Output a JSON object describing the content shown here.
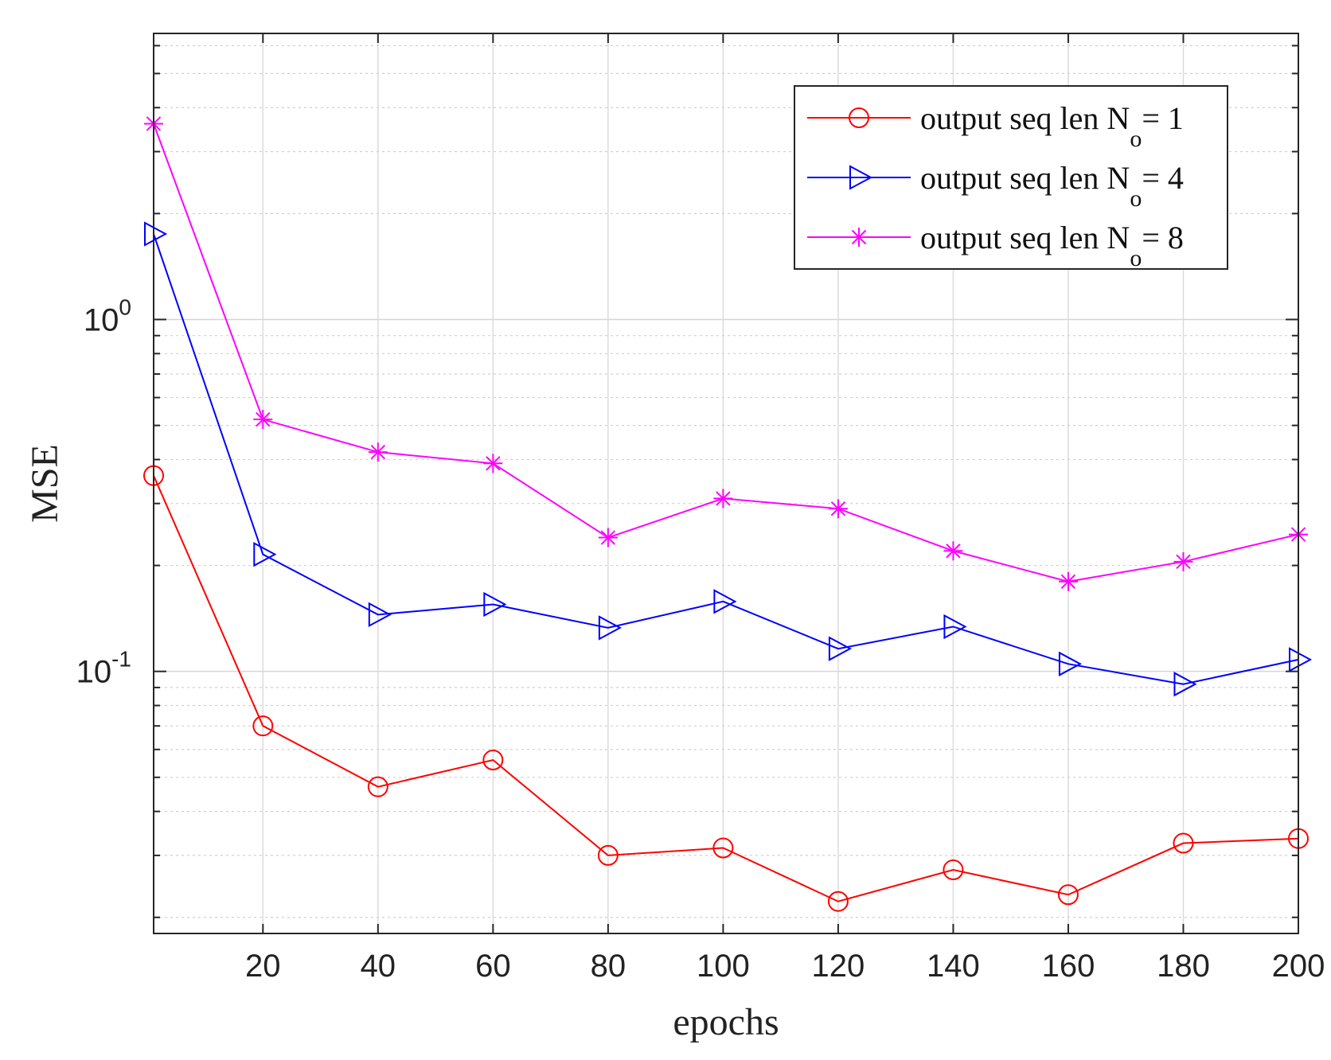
{
  "chart_data": {
    "type": "line",
    "title": "",
    "xlabel": "epochs",
    "ylabel": "MSE",
    "xlim": [
      1,
      200
    ],
    "ylim": [
      0.018,
      6.5
    ],
    "yscale": "log",
    "grid": true,
    "legend_position": "top-right",
    "x": [
      1,
      20,
      40,
      60,
      80,
      100,
      120,
      140,
      160,
      180,
      200
    ],
    "x_ticks": [
      20,
      40,
      60,
      80,
      100,
      120,
      140,
      160,
      180,
      200
    ],
    "x_tick_labels": [
      "20",
      "40",
      "60",
      "80",
      "100",
      "120",
      "140",
      "160",
      "180",
      "200"
    ],
    "y_ticks": [
      {
        "value": 1,
        "base": "10",
        "exp": "0"
      },
      {
        "value": 0.1,
        "base": "10",
        "exp": "-1"
      }
    ],
    "series": [
      {
        "name": "output seq len N",
        "sub": "o",
        "suffix": "= 1",
        "color": "#ff0000",
        "marker": "circle",
        "values": [
          0.36,
          0.07,
          0.047,
          0.056,
          0.03,
          0.0315,
          0.0222,
          0.0273,
          0.0232,
          0.0325,
          0.0335
        ]
      },
      {
        "name": "output seq len N",
        "sub": "o",
        "suffix": "= 4",
        "color": "#0000ff",
        "marker": "triangle-right",
        "values": [
          1.75,
          0.215,
          0.145,
          0.155,
          0.133,
          0.158,
          0.116,
          0.134,
          0.105,
          0.092,
          0.108
        ]
      },
      {
        "name": "output seq len N",
        "sub": "o",
        "suffix": "= 8",
        "color": "#ff00ff",
        "marker": "asterisk",
        "values": [
          3.6,
          0.52,
          0.42,
          0.39,
          0.24,
          0.31,
          0.29,
          0.22,
          0.18,
          0.205,
          0.245
        ]
      }
    ]
  }
}
